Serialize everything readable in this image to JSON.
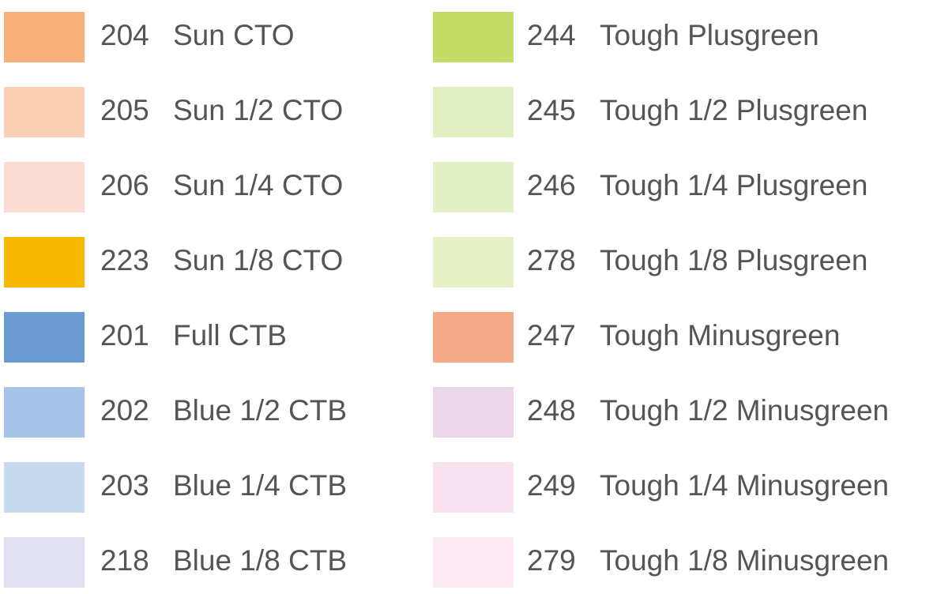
{
  "columns": [
    {
      "items": [
        {
          "code": "204",
          "name": "Sun CTO",
          "color": "#f7b07a"
        },
        {
          "code": "205",
          "name": "Sun 1/2 CTO",
          "color": "#fbd0b5"
        },
        {
          "code": "206",
          "name": "Sun 1/4 CTO",
          "color": "#fbdcd3"
        },
        {
          "code": "223",
          "name": "Sun 1/8 CTO",
          "color": "#f9b800"
        },
        {
          "code": "201",
          "name": "Full CTB",
          "color": "#6b9bd2"
        },
        {
          "code": "202",
          "name": "Blue 1/2 CTB",
          "color": "#a5c3e8"
        },
        {
          "code": "203",
          "name": "Blue 1/4 CTB",
          "color": "#c7daf0"
        },
        {
          "code": "218",
          "name": "Blue 1/8 CTB",
          "color": "#e2e2f3"
        }
      ]
    },
    {
      "items": [
        {
          "code": "244",
          "name": "Tough Plusgreen",
          "color": "#c5dd67"
        },
        {
          "code": "245",
          "name": "Tough 1/2 Plusgreen",
          "color": "#e2efc2"
        },
        {
          "code": "246",
          "name": "Tough 1/4 Plusgreen",
          "color": "#e4f0c6"
        },
        {
          "code": "278",
          "name": "Tough 1/8 Plusgreen",
          "color": "#e6f1c8"
        },
        {
          "code": "247",
          "name": "Tough Minusgreen",
          "color": "#f4a987"
        },
        {
          "code": "248",
          "name": "Tough 1/2 Minusgreen",
          "color": "#ecd6ea"
        },
        {
          "code": "249",
          "name": "Tough 1/4 Minusgreen",
          "color": "#f9e3f1"
        },
        {
          "code": "279",
          "name": "Tough 1/8 Minusgreen",
          "color": "#fce9f3"
        }
      ]
    }
  ]
}
